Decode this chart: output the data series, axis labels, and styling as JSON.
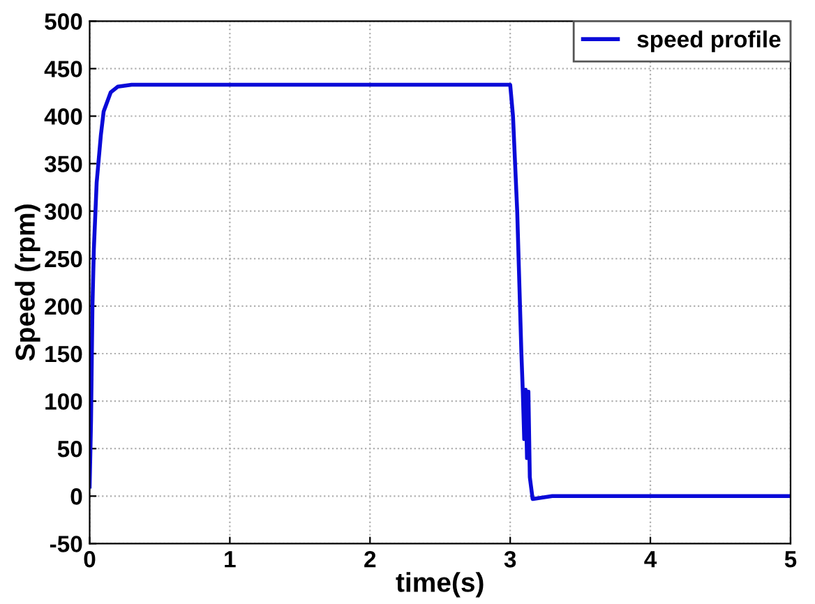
{
  "chart_data": {
    "type": "line",
    "xlabel": "time(s)",
    "ylabel": "Speed (rpm)",
    "xlim": [
      0,
      5
    ],
    "xticks": [
      0,
      1,
      2,
      3,
      4,
      5
    ],
    "ylim": [
      -50,
      500
    ],
    "yticks": [
      -50,
      0,
      50,
      100,
      150,
      200,
      250,
      300,
      350,
      400,
      450,
      500
    ],
    "grid": true,
    "legend": "top right",
    "line_style": "solid",
    "series": [
      {
        "name": "speed profile",
        "color": "#0a0ad8",
        "x": [
          0,
          0.01,
          0.02,
          0.03,
          0.05,
          0.08,
          0.1,
          0.15,
          0.2,
          0.3,
          3.0,
          3.02,
          3.05,
          3.07,
          3.08,
          3.09,
          3.1,
          3.11,
          3.12,
          3.13,
          3.14,
          3.16,
          3.3,
          5
        ],
        "values": [
          10,
          80,
          200,
          260,
          330,
          380,
          405,
          425,
          431,
          433,
          433,
          400,
          300,
          200,
          150,
          110,
          60,
          112,
          40,
          110,
          20,
          -3,
          0,
          0
        ]
      }
    ]
  }
}
